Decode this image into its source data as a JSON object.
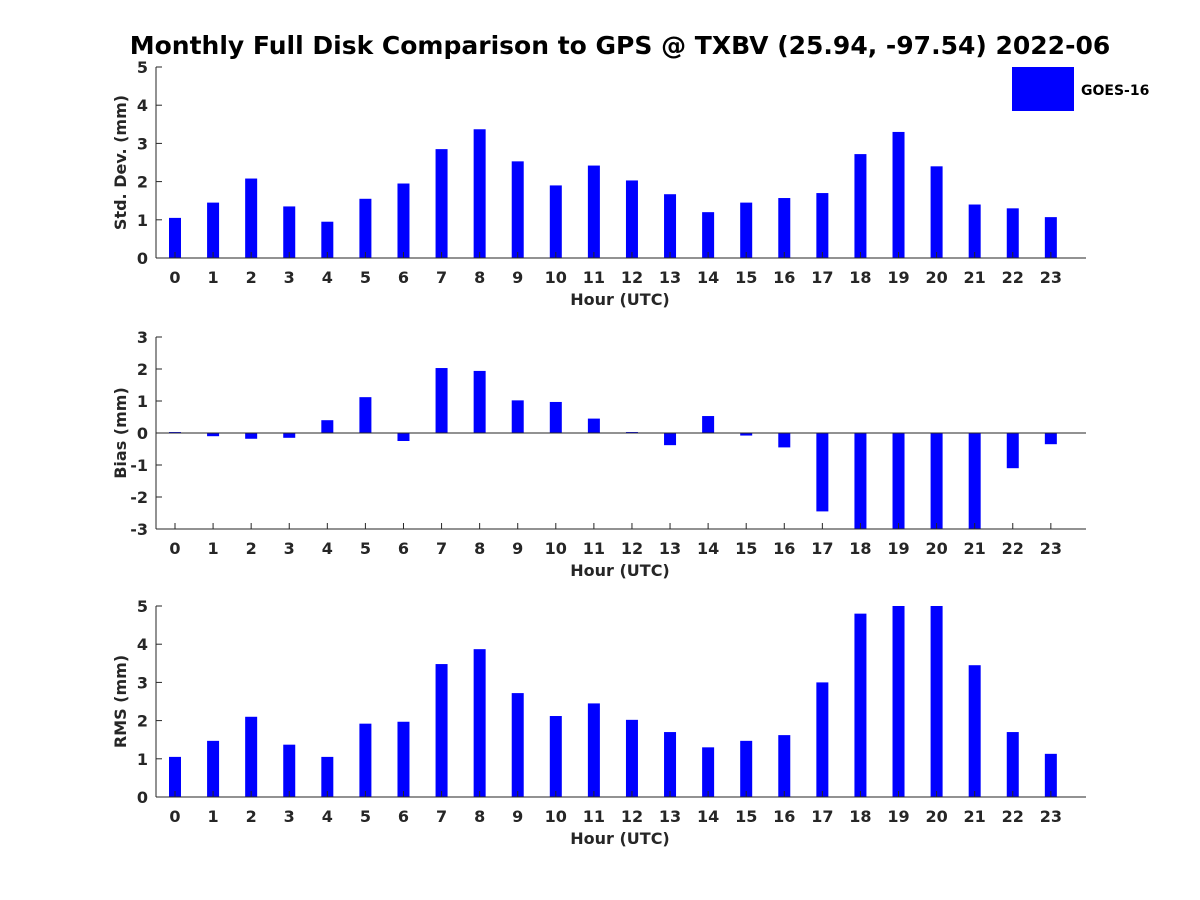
{
  "title": "Monthly Full Disk Comparison to GPS @ TXBV (25.94, -97.54) 2022-06",
  "legend": {
    "label": "GOES-16",
    "color": "#0000ff",
    "placement": "top-right"
  },
  "colors": {
    "bar": "#0000ff",
    "axis": "#262626"
  },
  "chart_data": [
    {
      "type": "bar",
      "categories": [
        "0",
        "1",
        "2",
        "3",
        "4",
        "5",
        "6",
        "7",
        "8",
        "9",
        "10",
        "11",
        "12",
        "13",
        "14",
        "15",
        "16",
        "17",
        "18",
        "19",
        "20",
        "21",
        "22",
        "23"
      ],
      "series": [
        {
          "name": "GOES-16",
          "values": [
            1.05,
            1.45,
            2.08,
            1.35,
            0.95,
            1.55,
            1.95,
            2.85,
            3.37,
            2.53,
            1.9,
            2.42,
            2.03,
            1.67,
            1.2,
            1.45,
            1.57,
            1.7,
            2.72,
            3.3,
            2.4,
            1.4,
            1.3,
            1.07
          ]
        }
      ],
      "title": "",
      "xlabel": "Hour (UTC)",
      "ylabel": "Std. Dev. (mm)",
      "ylim": [
        0,
        5
      ],
      "yticks": [
        "0",
        "1",
        "2",
        "3",
        "4",
        "5"
      ],
      "grid": false
    },
    {
      "type": "bar",
      "categories": [
        "0",
        "1",
        "2",
        "3",
        "4",
        "5",
        "6",
        "7",
        "8",
        "9",
        "10",
        "11",
        "12",
        "13",
        "14",
        "15",
        "16",
        "17",
        "18",
        "19",
        "20",
        "21",
        "22",
        "23"
      ],
      "series": [
        {
          "name": "GOES-16",
          "values": [
            0.03,
            -0.1,
            -0.18,
            -0.15,
            0.4,
            1.12,
            -0.25,
            2.03,
            1.94,
            1.02,
            0.97,
            0.45,
            0.03,
            -0.38,
            0.53,
            -0.08,
            -0.45,
            -2.45,
            -3.0,
            -3.0,
            -3.0,
            -3.0,
            -1.1,
            -0.35
          ]
        }
      ],
      "title": "",
      "xlabel": "Hour (UTC)",
      "ylabel": "Bias (mm)",
      "ylim": [
        -3,
        3
      ],
      "yticks": [
        "-3",
        "-2",
        "-1",
        "0",
        "1",
        "2",
        "3"
      ],
      "grid": false
    },
    {
      "type": "bar",
      "categories": [
        "0",
        "1",
        "2",
        "3",
        "4",
        "5",
        "6",
        "7",
        "8",
        "9",
        "10",
        "11",
        "12",
        "13",
        "14",
        "15",
        "16",
        "17",
        "18",
        "19",
        "20",
        "21",
        "22",
        "23"
      ],
      "series": [
        {
          "name": "GOES-16",
          "values": [
            1.05,
            1.47,
            2.1,
            1.37,
            1.05,
            1.92,
            1.97,
            3.48,
            3.87,
            2.72,
            2.12,
            2.45,
            2.02,
            1.7,
            1.3,
            1.47,
            1.62,
            3.0,
            4.8,
            5.0,
            5.0,
            3.45,
            1.7,
            1.13
          ]
        }
      ],
      "title": "",
      "xlabel": "Hour (UTC)",
      "ylabel": "RMS (mm)",
      "ylim": [
        0,
        5
      ],
      "yticks": [
        "0",
        "1",
        "2",
        "3",
        "4",
        "5"
      ],
      "grid": false
    }
  ]
}
